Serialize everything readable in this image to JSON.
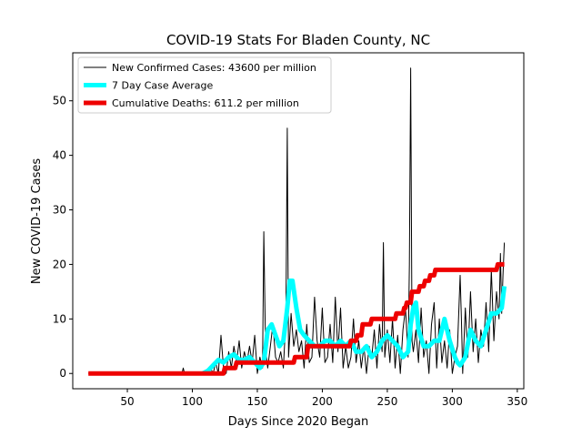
{
  "chart_data": {
    "type": "line",
    "title": "COVID-19 Stats For Bladen County, NC",
    "xlabel": "Days Since 2020 Began",
    "ylabel": "New COVID-19 Cases",
    "xlim": [
      8,
      355
    ],
    "ylim": [
      -2.8,
      58.8
    ],
    "xticks": [
      50,
      100,
      150,
      200,
      250,
      300,
      350
    ],
    "yticks": [
      0,
      10,
      20,
      30,
      40,
      50
    ],
    "grid": false,
    "legend_position": "top-left",
    "series": [
      {
        "name": "New Confirmed Cases: 43600 per million",
        "color": "#000000",
        "x": [
          20,
          40,
          60,
          80,
          92,
          93,
          94,
          95,
          100,
          105,
          110,
          112,
          114,
          116,
          118,
          120,
          122,
          124,
          126,
          128,
          130,
          132,
          134,
          136,
          138,
          140,
          142,
          144,
          146,
          148,
          150,
          152,
          154,
          155,
          156,
          157,
          158,
          160,
          162,
          164,
          166,
          168,
          170,
          172,
          173,
          174,
          176,
          178,
          180,
          182,
          184,
          186,
          188,
          190,
          192,
          194,
          196,
          198,
          200,
          202,
          204,
          206,
          208,
          210,
          212,
          214,
          216,
          218,
          220,
          222,
          224,
          226,
          228,
          230,
          232,
          234,
          236,
          238,
          240,
          242,
          244,
          246,
          247,
          248,
          250,
          252,
          254,
          256,
          258,
          260,
          262,
          264,
          266,
          267,
          268,
          269,
          270,
          272,
          274,
          276,
          278,
          280,
          282,
          284,
          286,
          288,
          290,
          292,
          294,
          296,
          298,
          300,
          302,
          304,
          306,
          307,
          308,
          310,
          312,
          314,
          316,
          318,
          320,
          322,
          324,
          326,
          328,
          330,
          332,
          334,
          336,
          337,
          338,
          339,
          340
        ],
        "y": [
          0,
          0,
          0,
          0,
          0,
          1,
          0,
          0,
          0,
          0,
          0,
          0,
          1,
          0,
          2,
          0,
          7,
          1,
          0,
          4,
          1,
          5,
          2,
          6,
          1,
          4,
          2,
          5,
          2,
          7,
          0,
          3,
          1,
          26,
          9,
          3,
          1,
          5,
          9,
          3,
          2,
          4,
          1,
          10,
          45,
          3,
          11,
          5,
          8,
          4,
          6,
          1,
          9,
          2,
          3,
          14,
          6,
          3,
          12,
          2,
          3,
          9,
          2,
          14,
          4,
          12,
          1,
          5,
          1,
          3,
          10,
          2,
          6,
          1,
          5,
          0,
          5,
          3,
          8,
          1,
          9,
          4,
          24,
          3,
          8,
          2,
          10,
          1,
          7,
          0,
          8,
          12,
          3,
          20,
          56,
          6,
          4,
          8,
          2,
          12,
          3,
          6,
          0,
          9,
          13,
          1,
          10,
          2,
          6,
          1,
          8,
          0,
          3,
          5,
          18,
          10,
          0,
          12,
          3,
          15,
          4,
          10,
          2,
          8,
          5,
          13,
          4,
          19,
          6,
          15,
          10,
          22,
          11,
          18,
          24
        ],
        "width": 1
      },
      {
        "name": "7 Day Case Average",
        "color": "#00ffff",
        "x": [
          108,
          112,
          116,
          120,
          124,
          128,
          132,
          136,
          140,
          144,
          148,
          152,
          155,
          158,
          161,
          164,
          167,
          170,
          173,
          175,
          177,
          180,
          183,
          186,
          190,
          194,
          198,
          202,
          206,
          210,
          214,
          218,
          222,
          226,
          230,
          234,
          238,
          242,
          246,
          250,
          254,
          258,
          262,
          266,
          268,
          270,
          272,
          274,
          278,
          282,
          286,
          290,
          294,
          298,
          302,
          304,
          306,
          310,
          314,
          318,
          322,
          326,
          330,
          334,
          338,
          340
        ],
        "y": [
          0,
          0.5,
          1.5,
          2.5,
          2,
          3,
          3.5,
          2.5,
          2.5,
          3,
          2,
          1,
          2,
          8,
          9,
          7,
          5,
          6,
          12,
          17,
          17,
          12,
          8,
          7,
          6,
          5,
          5,
          6,
          6,
          5,
          6,
          5,
          6,
          4,
          4,
          5,
          3,
          4,
          6,
          7,
          6,
          5,
          3,
          4,
          9,
          12,
          13,
          8,
          5,
          5,
          6,
          6,
          10,
          6,
          3,
          2,
          1.5,
          3,
          8,
          6,
          5,
          8,
          11,
          11,
          12,
          16
        ],
        "width": 5
      },
      {
        "name": "Cumulative Deaths: 611.2 per million",
        "color": "#ee0000",
        "x": [
          20,
          124,
          125,
          133,
          134,
          178,
          179,
          188,
          189,
          221,
          222,
          226,
          227,
          230,
          231,
          237,
          238,
          256,
          257,
          262,
          263,
          264,
          265,
          268,
          269,
          274,
          275,
          278,
          279,
          282,
          283,
          286,
          287,
          334,
          335,
          340
        ],
        "y": [
          0,
          0,
          1,
          1,
          2,
          2,
          3,
          3,
          5,
          5,
          6,
          6,
          7,
          7,
          9,
          9,
          10,
          10,
          11,
          11,
          12,
          12,
          13,
          13,
          15,
          15,
          16,
          16,
          17,
          17,
          18,
          18,
          19,
          19,
          20,
          20
        ],
        "width": 5
      }
    ]
  }
}
